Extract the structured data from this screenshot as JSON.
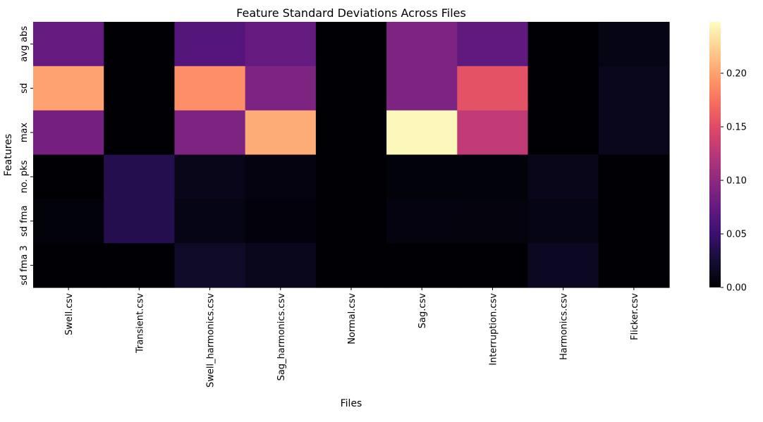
{
  "chart_data": {
    "type": "heatmap",
    "title": "Feature Standard Deviations Across Files",
    "xlabel": "Files",
    "ylabel": "Features",
    "colormap": "magma",
    "x_categories": [
      "Swell.csv",
      "Transient.csv",
      "Swell_harmonics.csv",
      "Sag_harmonics.csv",
      "Normal.csv",
      "Sag.csv",
      "Interruption.csv",
      "Harmonics.csv",
      "Flicker.csv"
    ],
    "y_categories": [
      "avg abs",
      "sd",
      "max",
      "no. pks",
      "sd fma",
      "sd fma 3"
    ],
    "values": [
      [
        0.075,
        0.0,
        0.065,
        0.075,
        0.0,
        0.09,
        0.072,
        0.0,
        0.008
      ],
      [
        0.2,
        0.0,
        0.19,
        0.09,
        0.0,
        0.09,
        0.155,
        0.0,
        0.012
      ],
      [
        0.085,
        0.0,
        0.09,
        0.205,
        0.0,
        0.245,
        0.13,
        0.0,
        0.012
      ],
      [
        0.0,
        0.035,
        0.01,
        0.006,
        0.0,
        0.003,
        0.003,
        0.01,
        0.0
      ],
      [
        0.003,
        0.035,
        0.008,
        0.004,
        0.0,
        0.006,
        0.005,
        0.008,
        0.0
      ],
      [
        0.0,
        0.0,
        0.018,
        0.012,
        0.0,
        0.0,
        0.0,
        0.015,
        0.0
      ]
    ],
    "colorbar": {
      "range": [
        0.0,
        0.248
      ],
      "ticks": [
        0.0,
        0.05,
        0.1,
        0.15,
        0.2
      ],
      "tick_labels": [
        "0.00",
        "0.05",
        "0.10",
        "0.15",
        "0.20"
      ]
    }
  }
}
